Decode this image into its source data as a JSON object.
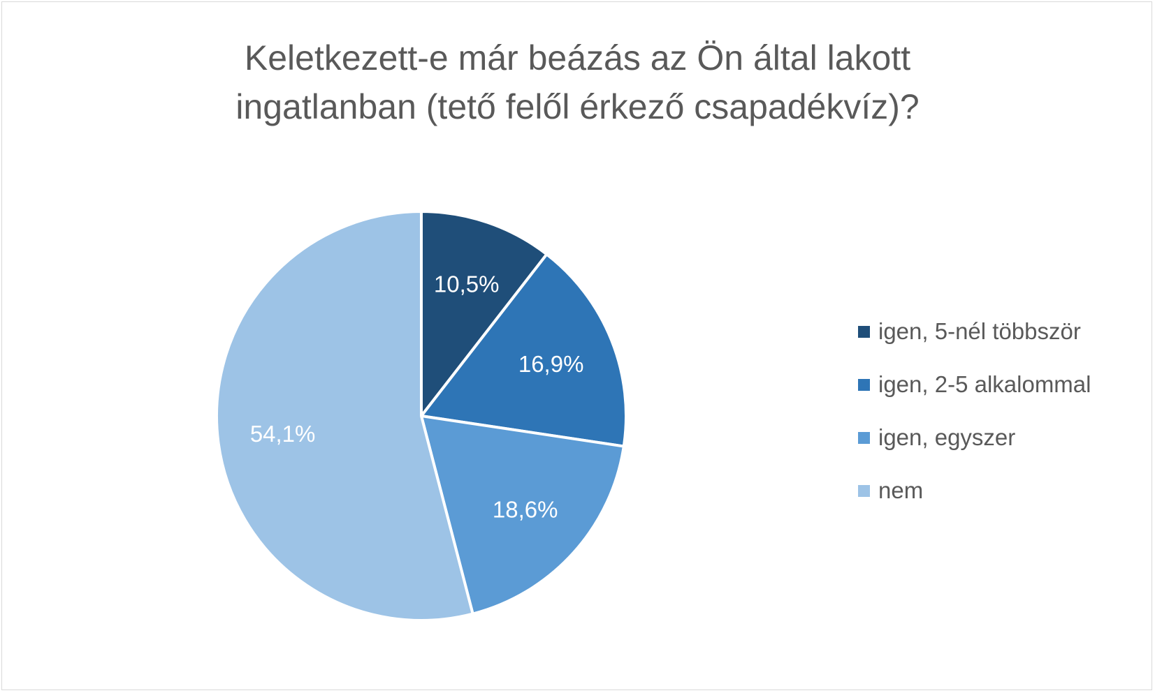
{
  "colors": {
    "title": "#595959",
    "legend_text": "#595959",
    "slice_border": "#ffffff",
    "data_label": "#ffffff",
    "frame_border": "#d9d9d9"
  },
  "chart_data": {
    "type": "pie",
    "title_lines": [
      "Keletkezett-e már beázás az Ön által lakott",
      "ingatlanban (tető felől érkező csapadékvíz)?"
    ],
    "legend_position": "right",
    "start_angle_deg": 0,
    "direction": "clockwise",
    "slices": [
      {
        "label": "igen, 5-nél többször",
        "value": 10.5,
        "display": "10,5%",
        "color": "#1f4e79"
      },
      {
        "label": "igen, 2-5 alkalommal",
        "value": 16.9,
        "display": "16,9%",
        "color": "#2e75b6"
      },
      {
        "label": "igen, egyszer",
        "value": 18.6,
        "display": "18,6%",
        "color": "#5b9bd5"
      },
      {
        "label": "nem",
        "value": 54.1,
        "display": "54,1%",
        "color": "#9dc3e6"
      }
    ]
  }
}
